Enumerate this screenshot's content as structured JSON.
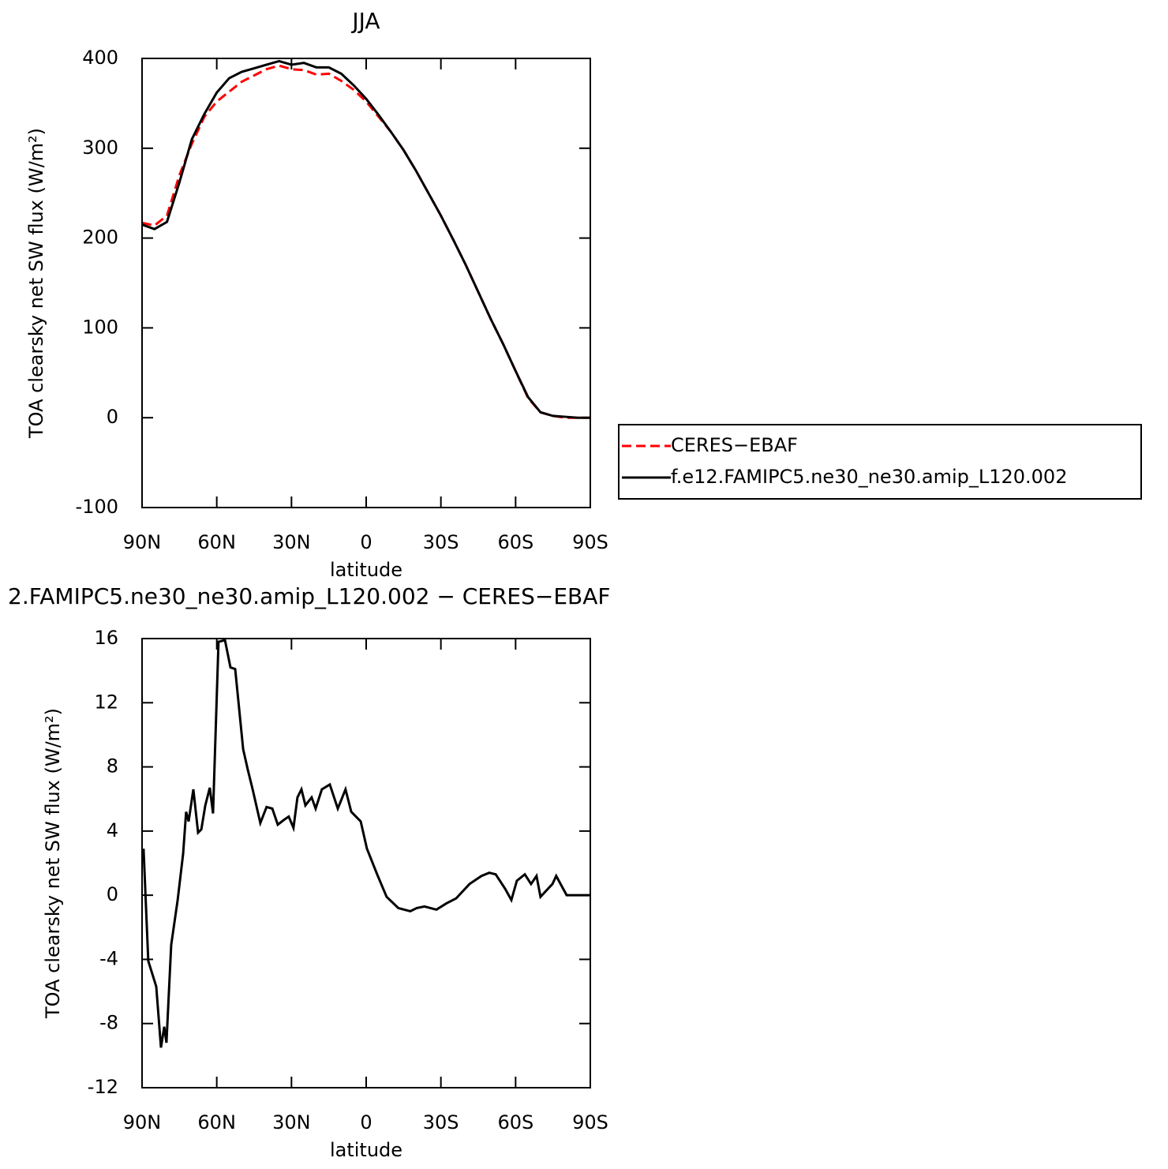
{
  "chart_data": [
    {
      "type": "line",
      "title": "JJA",
      "xlabel": "latitude",
      "ylabel": "TOA clearsky net SW flux (W/m²)",
      "xlim": [
        90,
        -90
      ],
      "xticks": [
        {
          "value": 90,
          "label": "90N"
        },
        {
          "value": 60,
          "label": "60N"
        },
        {
          "value": 30,
          "label": "30N"
        },
        0,
        {
          "value": -30,
          "label": "30S"
        },
        {
          "value": -60,
          "label": "60S"
        },
        {
          "value": -90,
          "label": "90S"
        }
      ],
      "ylim": [
        -100,
        400
      ],
      "yticks": [
        -100,
        0,
        100,
        200,
        300,
        400
      ],
      "legend": "right",
      "x": [
        90,
        85,
        80,
        75,
        70,
        65,
        60,
        55,
        50,
        45,
        40,
        35,
        30,
        25,
        20,
        15,
        10,
        5,
        0,
        -5,
        -10,
        -15,
        -20,
        -25,
        -30,
        -35,
        -40,
        -45,
        -50,
        -55,
        -60,
        -65,
        -70,
        -75,
        -80,
        -85,
        -90
      ],
      "series": [
        {
          "name": "CERES−EBAF",
          "color": "#ff0000",
          "linestyle": "dashed",
          "values": [
            217,
            214,
            225,
            270,
            305,
            335,
            352,
            363,
            374,
            381,
            388,
            392,
            388,
            387,
            382,
            383,
            375,
            365,
            352,
            335,
            318,
            298,
            275,
            250,
            225,
            198,
            170,
            140,
            110,
            82,
            52,
            22,
            6,
            2,
            0,
            0,
            0
          ]
        },
        {
          "name": "f.e12.FAMIPC5.ne30_ne30.amip_L120.002",
          "color": "#000000",
          "linestyle": "solid",
          "values": [
            215,
            210,
            218,
            262,
            310,
            338,
            362,
            378,
            385,
            389,
            393,
            397,
            393,
            395,
            390,
            390,
            383,
            370,
            355,
            337,
            318,
            298,
            275,
            250,
            225,
            198,
            170,
            140,
            110,
            82,
            52,
            23,
            6,
            2,
            1,
            0,
            0
          ]
        }
      ]
    },
    {
      "type": "line",
      "title": "2.FAMIPC5.ne30_ne30.amip_L120.002 − CERES−EBAF",
      "xlabel": "latitude",
      "ylabel": "TOA clearsky net SW flux (W/m²)",
      "xlim": [
        90,
        -90
      ],
      "xticks": [
        {
          "value": 90,
          "label": "90N"
        },
        {
          "value": 60,
          "label": "60N"
        },
        {
          "value": 30,
          "label": "30N"
        },
        0,
        {
          "value": -30,
          "label": "30S"
        },
        {
          "value": -60,
          "label": "60S"
        },
        {
          "value": -90,
          "label": "90S"
        }
      ],
      "ylim": [
        -12,
        16
      ],
      "yticks": [
        -12,
        -8,
        -4,
        0,
        4,
        8,
        12,
        16
      ],
      "x": [
        89.4,
        87.5,
        84.3,
        82.4,
        81.1,
        80.2,
        78.3,
        75.7,
        73.5,
        72.3,
        71.3,
        69.4,
        67.5,
        66.2,
        64.6,
        62.8,
        61.5,
        59.3,
        56.7,
        54.5,
        52.6,
        49.4,
        47.5,
        45.6,
        42.5,
        40,
        37.7,
        35.5,
        33,
        31.1,
        29.2,
        27.6,
        26,
        24.4,
        21.9,
        20.3,
        17.8,
        14.6,
        11.4,
        8.3,
        6,
        2.2,
        -0.3,
        -4.4,
        -8.2,
        -12.9,
        -17.7,
        -20.3,
        -23.4,
        -28.2,
        -32.3,
        -36.1,
        -41.5,
        -46.3,
        -49.4,
        -52,
        -55.8,
        -58.3,
        -60.5,
        -63.7,
        -66.2,
        -68.4,
        -70,
        -74.8,
        -76.3,
        -80.5,
        -90
      ],
      "series": [
        {
          "color": "#000000",
          "linestyle": "solid",
          "values": [
            2.9,
            -4.1,
            -5.7,
            -9.5,
            -8.2,
            -9.2,
            -3.1,
            -0.3,
            2.6,
            5.2,
            4.6,
            6.6,
            3.9,
            4.1,
            5.6,
            6.7,
            5.1,
            15.8,
            15.9,
            14.2,
            14.1,
            9.1,
            7.8,
            6.6,
            4.5,
            5.5,
            5.4,
            4.4,
            4.7,
            4.9,
            4.2,
            6.1,
            6.6,
            5.6,
            6.1,
            5.4,
            6.6,
            6.9,
            5.4,
            6.6,
            5.2,
            4.6,
            2.9,
            1.3,
            -0.1,
            -0.8,
            -1.0,
            -0.8,
            -0.7,
            -0.9,
            -0.5,
            -0.2,
            0.7,
            1.2,
            1.4,
            1.3,
            0.4,
            -0.3,
            0.9,
            1.3,
            0.7,
            1.2,
            -0.1,
            0.7,
            1.2,
            0,
            0
          ]
        }
      ]
    }
  ]
}
